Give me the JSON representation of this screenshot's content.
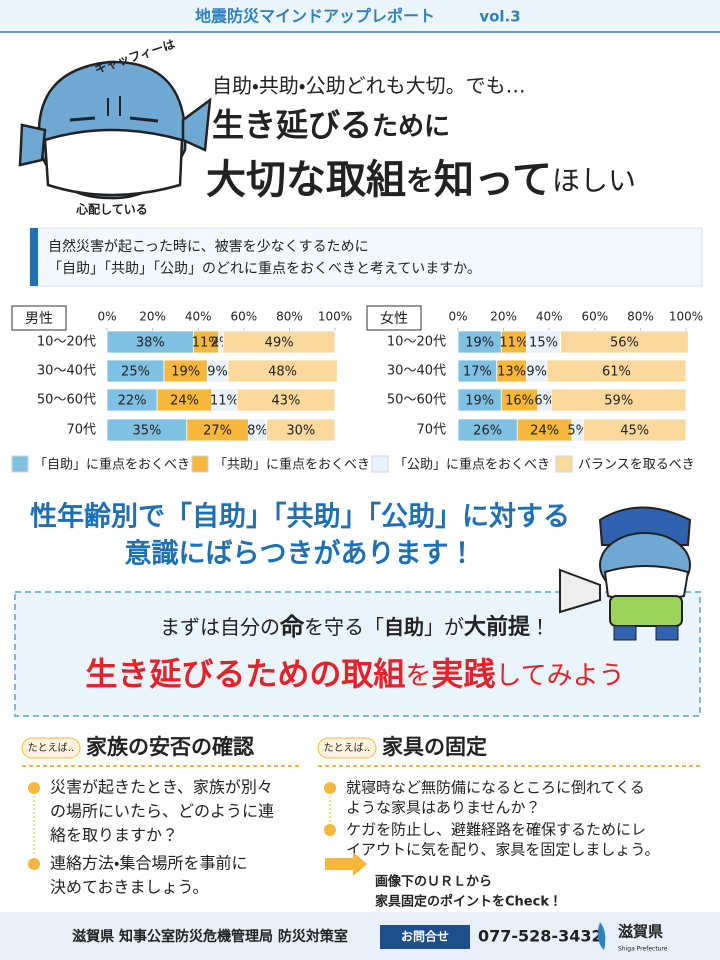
{
  "header": {
    "title": "地震防災マインドアップレポート",
    "vol": "vol.3"
  },
  "mascot": {
    "top": "キャッフィーは",
    "bottom": "心配している"
  },
  "lead": {
    "line1": "自助・共助・公助どれも大切。でも…",
    "line2": [
      "生き延びる",
      "ために"
    ],
    "line3": [
      "大切な取組",
      "を",
      "知って",
      "ほしい"
    ]
  },
  "question": [
    "自然災害が起こった時に、被害を少なくするために",
    "「自助」「共助」「公助」のどれに重点をおくべきと考えていますか。"
  ],
  "chart_data": {
    "type": "stacked-barh",
    "categories": [
      "10～20代",
      "30～40代",
      "50～60代",
      "70代"
    ],
    "xlim": [
      0,
      100
    ],
    "xticks": [
      {
        "value": 0,
        "label": "0%"
      },
      {
        "value": 20,
        "label": "20%"
      },
      {
        "value": 40,
        "label": "40%"
      },
      {
        "value": 60,
        "label": "60%"
      },
      {
        "value": 80,
        "label": "80%"
      },
      {
        "value": 100,
        "label": "100%"
      }
    ],
    "series": [
      {
        "name": "「自助」に重点をおくべき",
        "color": "#7fc1e3"
      },
      {
        "name": "「共助」に重点をおくべき",
        "color": "#f6b73c"
      },
      {
        "name": "「公助」に重点をおくべき",
        "color": "#e9f1f9"
      },
      {
        "name": "バランスを取るべき",
        "color": "#fbd89c"
      }
    ],
    "panels": [
      {
        "title": "男性",
        "series": [
          {
            "values": [
              38,
              25,
              22,
              35
            ],
            "value_labels": [
              "38%",
              "25%",
              "22%",
              "35%"
            ]
          },
          {
            "values": [
              11,
              19,
              24,
              27
            ],
            "value_labels": [
              "11%",
              "19%",
              "24%",
              "27%"
            ]
          },
          {
            "values": [
              2,
              9,
              11,
              8
            ],
            "value_labels": [
              "2%",
              "9%",
              "11%",
              "8%"
            ]
          },
          {
            "values": [
              49,
              48,
              43,
              30
            ],
            "value_labels": [
              "49%",
              "48%",
              "43%",
              "30%"
            ]
          }
        ]
      },
      {
        "title": "女性",
        "series": [
          {
            "values": [
              19,
              17,
              19,
              26
            ],
            "value_labels": [
              "19%",
              "17%",
              "19%",
              "26%"
            ]
          },
          {
            "values": [
              11,
              13,
              16,
              24
            ],
            "value_labels": [
              "11%",
              "13%",
              "16%",
              "24%"
            ]
          },
          {
            "values": [
              15,
              9,
              6,
              5
            ],
            "value_labels": [
              "15%",
              "9%",
              "6%",
              "5%"
            ]
          },
          {
            "values": [
              56,
              61,
              59,
              45
            ],
            "value_labels": [
              "56%",
              "61%",
              "59%",
              "45%"
            ]
          }
        ]
      }
    ]
  },
  "finding": [
    "性年齢別で「自助」「共助」「公助」に対する",
    "意識にばらつきがあります！"
  ],
  "callout": {
    "line1": [
      "まずは自分の",
      "命",
      "を守る「",
      "自助",
      "」が",
      "大前提",
      "！"
    ],
    "line2": [
      "生き延びるための取組",
      "を",
      "実践",
      "してみよう"
    ]
  },
  "tips": [
    {
      "tag": "たとえば‥",
      "title": "家族の安否の確認",
      "items": [
        [
          "災害が起きたとき、家族が別々",
          "の場所にいたら、どのように連",
          "絡を取りますか？"
        ],
        [
          "連絡方法・集合場所を事前に",
          "決めておきましょう。"
        ]
      ]
    },
    {
      "tag": "たとえば‥",
      "title": "家具の固定",
      "items": [
        [
          "就寝時など無防備になるところに倒れてくる",
          "ような家具はありませんか？"
        ],
        [
          "ケガを防止し、避難経路を確保するためにレ",
          "イアウトに気を配り、家具を固定しましょう。"
        ]
      ],
      "note": [
        "画像下のＵＲＬから",
        "家具固定のポイントをCheck！"
      ]
    }
  ],
  "footer": {
    "office": "滋賀県 知事公室防災危機管理局 防災対策室",
    "contact": "お問合せ",
    "phone": "077-528-3432",
    "logo": "滋賀県",
    "logo_sub": "Shiga Prefecture"
  }
}
